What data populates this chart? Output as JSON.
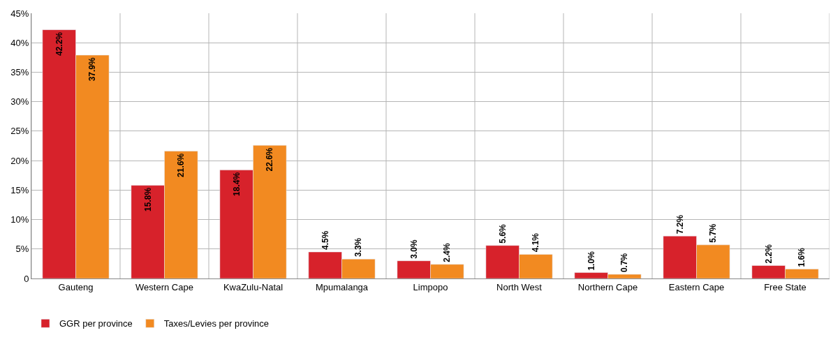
{
  "chart_data": {
    "type": "bar",
    "categories": [
      "Gauteng",
      "Western Cape",
      "KwaZulu-Natal",
      "Mpumalanga",
      "Limpopo",
      "North West",
      "Northern Cape",
      "Eastern Cape",
      "Free State"
    ],
    "series": [
      {
        "name": "GGR per province",
        "color": "#d7222b",
        "values": [
          42.2,
          15.8,
          18.4,
          4.5,
          3.0,
          5.6,
          1.0,
          7.2,
          2.2
        ],
        "value_labels": [
          "42.2%",
          "15.8%",
          "18.4%",
          "4.5%",
          "3.0%",
          "5.6%",
          "1.0%",
          "7.2%",
          "2.2%"
        ]
      },
      {
        "name": "Taxes/Levies per province",
        "color": "#f28a21",
        "values": [
          37.9,
          21.6,
          22.6,
          3.3,
          2.4,
          4.1,
          0.7,
          5.7,
          1.6
        ],
        "value_labels": [
          "37.9%",
          "21.6%",
          "22.6%",
          "3.3%",
          "2.4%",
          "4.1%",
          "0.7%",
          "5.7%",
          "1.6%"
        ]
      }
    ],
    "ylim": [
      0,
      45
    ],
    "yticks": [
      0,
      {
        "value": 5,
        "label": "5%"
      },
      {
        "value": 10,
        "label": "10%"
      },
      {
        "value": 15,
        "label": "15%"
      },
      {
        "value": 20,
        "label": "20%"
      },
      {
        "value": 25,
        "label": "25%"
      },
      {
        "value": 30,
        "label": "30%"
      },
      {
        "value": 35,
        "label": "35%"
      },
      {
        "value": 40,
        "label": "40%"
      },
      {
        "value": 45,
        "label": "45%"
      }
    ],
    "grid": true,
    "legend": "bottom left"
  }
}
